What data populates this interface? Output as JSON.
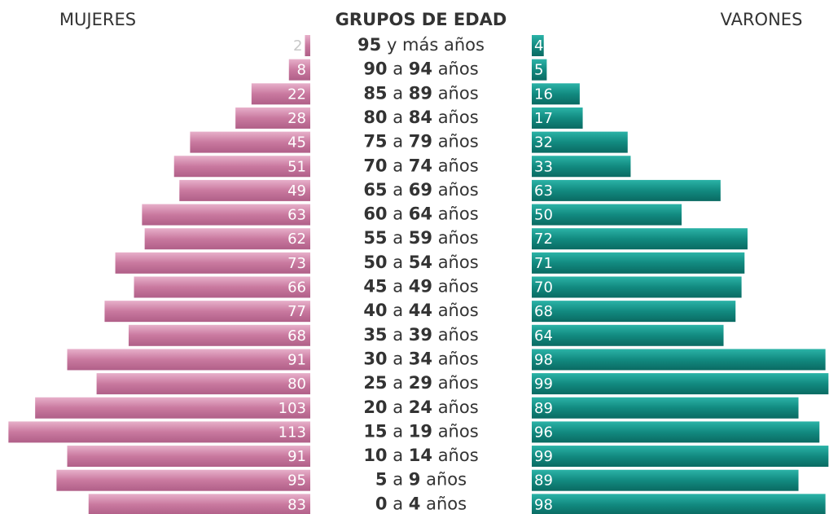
{
  "chart_data": {
    "type": "pyramid",
    "title": "GRUPOS DE EDAD",
    "categories": [
      "95 y más años",
      "90 a 94 años",
      "85 a 89 años",
      "80 a 84 años",
      "75 a 79 años",
      "70 a 74 años",
      "65 a 69 años",
      "60 a 64 años",
      "55 a 59 años",
      "50 a 54 años",
      "45 a 49 años",
      "40 a 44 años",
      "35 a 39 años",
      "30 a 34 años",
      "25 a 29 años",
      "20 a 24 años",
      "15 a 19 años",
      "10 a 14 años",
      "5 a 9 años",
      "0 a 4 años"
    ],
    "series": [
      {
        "name": "MUJERES",
        "color": "#c9799f",
        "values": [
          2,
          8,
          22,
          28,
          45,
          51,
          49,
          63,
          62,
          73,
          66,
          77,
          68,
          91,
          80,
          103,
          113,
          91,
          95,
          83
        ]
      },
      {
        "name": "VARONES",
        "color": "#128a80",
        "values": [
          4,
          5,
          16,
          17,
          32,
          33,
          63,
          50,
          72,
          71,
          70,
          68,
          64,
          98,
          99,
          89,
          96,
          99,
          89,
          98
        ]
      }
    ]
  }
}
